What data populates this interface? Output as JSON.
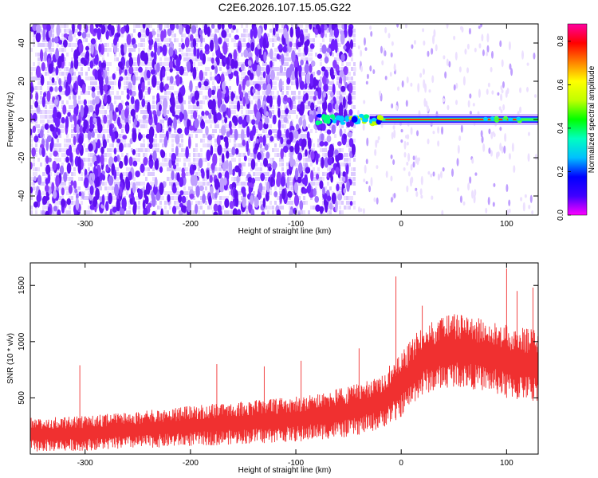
{
  "figure_title": "C2E6.2026.107.15.05.G22",
  "chart_data": [
    {
      "type": "heatmap",
      "title": "C2E6.2026.107.15.05.G22",
      "xlabel": "Height of straight line (km)",
      "ylabel": "Frequency (Hz)",
      "xlim": [
        -352,
        130
      ],
      "ylim": [
        -50,
        50
      ],
      "xticks": [
        -300,
        -200,
        -100,
        0,
        100
      ],
      "yticks": [
        -40,
        -20,
        0,
        20,
        40
      ],
      "colorbar": {
        "label": "Normalized spectral amplitude",
        "range": [
          0,
          0.88
        ],
        "ticks": [
          0.0,
          0.2,
          0.4,
          0.6,
          0.8
        ],
        "colormap": "hsv-rainbow",
        "colors": [
          "#ff00ff",
          "#4000ff",
          "#0000ff",
          "#00c0ff",
          "#00ffc0",
          "#00ff00",
          "#c0ff00",
          "#ffff00",
          "#ff8000",
          "#ff0000",
          "#ff00a0"
        ]
      },
      "background_noise_edge_km": -45,
      "signal_start_km": -80,
      "signal_frequency_hz": 0
    },
    {
      "type": "line",
      "xlabel": "Height of straight line (km)",
      "ylabel": "SNR (10 * v/v)",
      "xlim": [
        -352,
        130
      ],
      "ylim": [
        0,
        1700
      ],
      "xticks": [
        -300,
        -200,
        -100,
        0,
        100
      ],
      "yticks": [
        500,
        1000,
        1500
      ],
      "series_color": "#f03030",
      "envelope": {
        "x": [
          -352,
          -300,
          -250,
          -200,
          -150,
          -100,
          -50,
          -20,
          0,
          20,
          50,
          80,
          100,
          130
        ],
        "lower": [
          20,
          30,
          50,
          70,
          90,
          110,
          150,
          220,
          330,
          530,
          600,
          560,
          500,
          470
        ],
        "upper": [
          330,
          340,
          380,
          430,
          470,
          510,
          600,
          700,
          900,
          1150,
          1250,
          1200,
          1150,
          1100
        ]
      },
      "spikes": [
        {
          "x": -305,
          "y": 790
        },
        {
          "x": -175,
          "y": 800
        },
        {
          "x": -130,
          "y": 780
        },
        {
          "x": -95,
          "y": 830
        },
        {
          "x": -40,
          "y": 940
        },
        {
          "x": -5,
          "y": 1580
        },
        {
          "x": 20,
          "y": 1320
        },
        {
          "x": 100,
          "y": 1650
        },
        {
          "x": 110,
          "y": 1450
        },
        {
          "x": 125,
          "y": 1480
        }
      ]
    }
  ]
}
